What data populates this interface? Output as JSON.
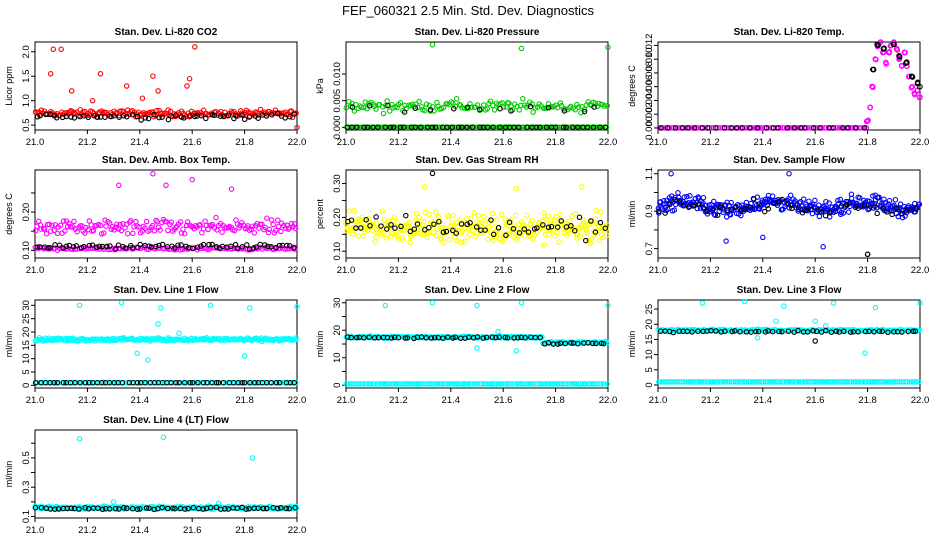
{
  "main_title": "FEF_060321  2.5 Min. Std. Dev. Diagnostics",
  "colors": {
    "red": "#ff0000",
    "green": "#00cc00",
    "magenta": "#ff00ff",
    "yellow": "#ffff00",
    "blue": "#0000ff",
    "cyan": "#00ffff",
    "black": "#000000"
  },
  "chart_data": [
    {
      "type": "scatter",
      "title": "Stan. Dev. Li-820 CO2",
      "xlabel": "",
      "ylabel": "Licor ppm",
      "xlim": [
        21.0,
        22.0
      ],
      "ylim": [
        0.4,
        2.2
      ],
      "xticks": [
        "21.0",
        "21.2",
        "21.4",
        "21.6",
        "21.8",
        "22.0"
      ],
      "yticks": [
        0.5,
        1.0,
        1.5,
        2.0
      ],
      "ytick_labels": [
        "0.5",
        "1.0",
        "1.5",
        "2.0"
      ],
      "series": [
        {
          "name": "all",
          "color": "red",
          "pattern": "band",
          "base": 0.74,
          "spread": 0.1,
          "count": 170,
          "outliers": [
            [
              21.07,
              2.05
            ],
            [
              21.1,
              2.05
            ],
            [
              21.06,
              1.55
            ],
            [
              21.14,
              1.2
            ],
            [
              21.25,
              1.55
            ],
            [
              21.35,
              1.3
            ],
            [
              21.45,
              1.5
            ],
            [
              21.47,
              1.2
            ],
            [
              21.58,
              1.3
            ],
            [
              21.59,
              1.45
            ],
            [
              21.61,
              2.1
            ],
            [
              21.22,
              1.0
            ],
            [
              21.41,
              1.05
            ],
            [
              22.0,
              0.45
            ]
          ]
        },
        {
          "name": "sampled",
          "color": "black",
          "pattern": "band",
          "base": 0.68,
          "spread": 0.09,
          "count": 60,
          "outliers": []
        }
      ]
    },
    {
      "type": "scatter",
      "title": "Stan. Dev. Li-820 Pressure",
      "xlabel": "",
      "ylabel": "kPa",
      "xlim": [
        21.0,
        22.0
      ],
      "ylim": [
        -0.0005,
        0.016
      ],
      "xticks": [
        "21.0",
        "21.2",
        "21.4",
        "21.6",
        "21.8",
        "22.0"
      ],
      "yticks": [
        0.0,
        0.005,
        0.01
      ],
      "ytick_labels": [
        "0.000",
        "0.005",
        "0.010"
      ],
      "series": [
        {
          "name": "zero",
          "color": "green",
          "pattern": "flat",
          "base": 0.0,
          "spread": 0.0,
          "count": 150,
          "outliers": []
        },
        {
          "name": "all",
          "color": "green",
          "pattern": "band",
          "base": 0.004,
          "spread": 0.0017,
          "count": 140,
          "outliers": [
            [
              21.33,
              0.0155
            ],
            [
              21.67,
              0.0148
            ],
            [
              22.0,
              0.015
            ]
          ]
        },
        {
          "name": "sampled",
          "color": "black",
          "pattern": "flat",
          "base": 0.0,
          "spread": 0.0,
          "count": 50,
          "outliers": []
        },
        {
          "name": "sampled-high",
          "color": "black",
          "pattern": "band",
          "base": 0.0035,
          "spread": 0.0015,
          "count": 16,
          "outliers": []
        }
      ]
    },
    {
      "type": "scatter",
      "title": "Stan. Dev. Li-820 Temp.",
      "xlabel": "",
      "ylabel": "degrees C",
      "xlim": [
        21.0,
        22.0
      ],
      "ylim": [
        -0.0003,
        0.0125
      ],
      "xticks": [
        "21.0",
        "21.2",
        "21.4",
        "21.6",
        "21.8",
        "22.0"
      ],
      "yticks": [
        0.0,
        0.002,
        0.004,
        0.006,
        0.008,
        0.01,
        0.012
      ],
      "ytick_labels": [
        "0.000",
        "0.002",
        "0.004",
        "0.006",
        "0.008",
        "0.010",
        "0.012"
      ],
      "series": [
        {
          "name": "zero",
          "color": "magenta",
          "pattern": "flat",
          "base": 0.0,
          "spread": 0.0,
          "x_range": [
            21.0,
            21.8
          ],
          "count": 95,
          "outliers": []
        },
        {
          "name": "zero-sampled",
          "color": "black",
          "pattern": "flat",
          "base": 0.0,
          "spread": 0.0,
          "x_range": [
            21.0,
            21.8
          ],
          "count": 30,
          "outliers": []
        },
        {
          "name": "spike",
          "color": "magenta",
          "pattern": "curve",
          "points": [
            [
              21.8,
              0.001
            ],
            [
              21.81,
              0.003
            ],
            [
              21.82,
              0.006
            ],
            [
              21.83,
              0.01
            ],
            [
              21.84,
              0.012
            ],
            [
              21.85,
              0.0125
            ],
            [
              21.86,
              0.011
            ],
            [
              21.87,
              0.0095
            ],
            [
              21.88,
              0.011
            ],
            [
              21.89,
              0.012
            ],
            [
              21.9,
              0.0125
            ],
            [
              21.91,
              0.0115
            ],
            [
              21.92,
              0.01
            ],
            [
              21.93,
              0.009
            ],
            [
              21.94,
              0.011
            ],
            [
              21.95,
              0.009
            ],
            [
              21.96,
              0.0075
            ],
            [
              21.97,
              0.006
            ],
            [
              21.98,
              0.005
            ],
            [
              21.99,
              0.0055
            ],
            [
              22.0,
              0.0045
            ]
          ]
        },
        {
          "name": "spike-sampled",
          "color": "black",
          "pattern": "curve",
          "points": [
            [
              21.82,
              0.0085
            ],
            [
              21.84,
              0.012
            ],
            [
              21.86,
              0.0115
            ],
            [
              21.9,
              0.0122
            ],
            [
              21.92,
              0.0105
            ],
            [
              21.95,
              0.0095
            ],
            [
              21.97,
              0.0075
            ],
            [
              21.99,
              0.0065
            ],
            [
              22.0,
              0.006
            ]
          ]
        }
      ]
    },
    {
      "type": "scatter",
      "title": "Stan. Dev. Amb. Box Temp.",
      "xlabel": "",
      "ylabel": "degrees C",
      "xlim": [
        21.0,
        22.0
      ],
      "ylim": [
        0.08,
        0.31
      ],
      "xticks": [
        "21.0",
        "21.2",
        "21.4",
        "21.6",
        "21.8",
        "22.0"
      ],
      "yticks": [
        0.1,
        0.15,
        0.2,
        0.25
      ],
      "ytick_labels": [
        "0.10",
        "",
        "0.20",
        ""
      ],
      "series": [
        {
          "name": "upper",
          "color": "magenta",
          "pattern": "band",
          "base": 0.16,
          "spread": 0.03,
          "count": 170,
          "outliers": [
            [
              21.45,
              0.3
            ],
            [
              21.6,
              0.285
            ],
            [
              21.32,
              0.27
            ],
            [
              21.5,
              0.27
            ],
            [
              21.75,
              0.26
            ]
          ]
        },
        {
          "name": "lower",
          "color": "magenta",
          "pattern": "band",
          "base": 0.105,
          "spread": 0.006,
          "count": 120,
          "outliers": []
        },
        {
          "name": "sampled",
          "color": "black",
          "pattern": "band",
          "base": 0.11,
          "spread": 0.008,
          "count": 70,
          "outliers": []
        }
      ]
    },
    {
      "type": "scatter",
      "title": "Stan. Dev. Gas Stream RH",
      "xlabel": "",
      "ylabel": "percent",
      "xlim": [
        21.0,
        22.0
      ],
      "ylim": [
        0.08,
        0.34
      ],
      "xticks": [
        "21.0",
        "21.2",
        "21.4",
        "21.6",
        "21.8",
        "22.0"
      ],
      "yticks": [
        0.1,
        0.15,
        0.2,
        0.25,
        0.3
      ],
      "ytick_labels": [
        "0.10",
        "",
        "0.20",
        "",
        "0.30"
      ],
      "series": [
        {
          "name": "all",
          "color": "yellow",
          "pattern": "band",
          "base": 0.17,
          "spread": 0.06,
          "count": 320,
          "outliers": [
            [
              21.65,
              0.285
            ],
            [
              21.9,
              0.29
            ],
            [
              21.3,
              0.29
            ]
          ]
        },
        {
          "name": "sampled",
          "color": "black",
          "pattern": "band",
          "base": 0.17,
          "spread": 0.05,
          "count": 55,
          "outliers": [
            [
              21.33,
              0.33
            ]
          ]
        }
      ]
    },
    {
      "type": "scatter",
      "title": "Stan. Dev. Sample Flow",
      "xlabel": "",
      "ylabel": "ml/min",
      "xlim": [
        21.0,
        22.0
      ],
      "ylim": [
        0.65,
        1.12
      ],
      "xticks": [
        "21.0",
        "21.2",
        "21.4",
        "21.6",
        "21.8",
        "22.0"
      ],
      "yticks": [
        0.7,
        0.8,
        0.9,
        1.0,
        1.1
      ],
      "ytick_labels": [
        "0.7",
        "",
        "0.9",
        "",
        "1.1"
      ],
      "series": [
        {
          "name": "all",
          "color": "blue",
          "pattern": "wave",
          "base": 0.93,
          "spread": 0.06,
          "count": 330,
          "outliers": [
            [
              21.05,
              1.1
            ],
            [
              21.5,
              1.1
            ],
            [
              21.26,
              0.74
            ],
            [
              21.4,
              0.76
            ],
            [
              21.63,
              0.71
            ],
            [
              21.8,
              0.67
            ]
          ]
        },
        {
          "name": "sampled",
          "color": "black",
          "pattern": "wave",
          "base": 0.92,
          "spread": 0.05,
          "count": 55,
          "outliers": [
            [
              21.8,
              0.67
            ]
          ]
        }
      ]
    },
    {
      "type": "scatter",
      "title": "Stan. Dev. Line 1 Flow",
      "xlabel": "",
      "ylabel": "ml/min",
      "xlim": [
        21.0,
        22.0
      ],
      "ylim": [
        -1,
        32
      ],
      "xticks": [
        "21.0",
        "21.2",
        "21.4",
        "21.6",
        "21.8",
        "22.0"
      ],
      "yticks": [
        0,
        5,
        10,
        15,
        20,
        25,
        30
      ],
      "ytick_labels": [
        "0",
        "5",
        "10",
        "15",
        "20",
        "25",
        "30"
      ],
      "series": [
        {
          "name": "all",
          "color": "cyan",
          "pattern": "band",
          "base": 17.2,
          "spread": 0.8,
          "count": 260,
          "outliers": [
            [
              21.17,
              30
            ],
            [
              21.33,
              31
            ],
            [
              21.48,
              29
            ],
            [
              21.67,
              30
            ],
            [
              21.82,
              29
            ],
            [
              22.0,
              29.5
            ],
            [
              21.47,
              23
            ],
            [
              21.39,
              12
            ],
            [
              21.43,
              9.5
            ],
            [
              21.8,
              11
            ],
            [
              21.55,
              19.5
            ]
          ]
        },
        {
          "name": "zero",
          "color": "cyan",
          "pattern": "flat",
          "base": 1.0,
          "spread": 0.0,
          "count": 120,
          "outliers": []
        },
        {
          "name": "sampled",
          "color": "black",
          "pattern": "flat",
          "base": 1.0,
          "spread": 0.0,
          "count": 60,
          "outliers": []
        }
      ]
    },
    {
      "type": "scatter",
      "title": "Stan. Dev. Line 2 Flow",
      "xlabel": "",
      "ylabel": "ml/min",
      "xlim": [
        21.0,
        22.0
      ],
      "ylim": [
        -1,
        31
      ],
      "xticks": [
        "21.0",
        "21.2",
        "21.4",
        "21.6",
        "21.8",
        "22.0"
      ],
      "yticks": [
        0,
        5,
        10,
        15,
        20,
        25,
        30
      ],
      "ytick_labels": [
        "0",
        "",
        "10",
        "",
        "20",
        "",
        "30"
      ],
      "series": [
        {
          "name": "all",
          "color": "cyan",
          "pattern": "step",
          "base": 17.5,
          "base2": 15.5,
          "step_at": 21.75,
          "spread": 0.5,
          "count": 240,
          "outliers": [
            [
              21.15,
              29
            ],
            [
              21.33,
              30
            ],
            [
              21.5,
              29
            ],
            [
              21.67,
              30
            ],
            [
              22.0,
              29
            ],
            [
              21.5,
              13.5
            ],
            [
              21.65,
              12.5
            ],
            [
              21.58,
              19.5
            ]
          ]
        },
        {
          "name": "zero",
          "color": "cyan",
          "pattern": "flat",
          "base": 0.5,
          "spread": 0.0,
          "count": 140,
          "outliers": []
        },
        {
          "name": "sampled",
          "color": "black",
          "pattern": "step",
          "base": 17.3,
          "base2": 15.3,
          "step_at": 21.75,
          "spread": 0.4,
          "count": 60,
          "outliers": []
        }
      ]
    },
    {
      "type": "scatter",
      "title": "Stan. Dev. Line 3 Flow",
      "xlabel": "",
      "ylabel": "ml/min",
      "xlim": [
        21.0,
        22.0
      ],
      "ylim": [
        -1,
        28
      ],
      "xticks": [
        "21.0",
        "21.2",
        "21.4",
        "21.6",
        "21.8",
        "22.0"
      ],
      "yticks": [
        0,
        5,
        10,
        15,
        20,
        25
      ],
      "ytick_labels": [
        "0",
        "5",
        "10",
        "15",
        "20",
        "25"
      ],
      "series": [
        {
          "name": "all",
          "color": "cyan",
          "pattern": "band",
          "base": 18.0,
          "spread": 0.5,
          "count": 240,
          "outliers": [
            [
              21.17,
              27
            ],
            [
              21.33,
              27.5
            ],
            [
              21.48,
              26
            ],
            [
              21.67,
              27
            ],
            [
              21.83,
              25.5
            ],
            [
              22.0,
              27
            ],
            [
              21.6,
              21
            ],
            [
              21.64,
              19.5
            ],
            [
              21.79,
              10.5
            ],
            [
              21.38,
              15.5
            ],
            [
              21.45,
              21
            ]
          ]
        },
        {
          "name": "zero",
          "color": "cyan",
          "pattern": "flat",
          "base": 1.0,
          "spread": 0.0,
          "count": 140,
          "outliers": []
        },
        {
          "name": "sampled",
          "color": "black",
          "pattern": "band",
          "base": 17.6,
          "spread": 0.4,
          "count": 55,
          "outliers": [
            [
              21.6,
              14.5
            ]
          ]
        }
      ]
    },
    {
      "type": "scatter",
      "title": "Stan. Dev. Line 4 (LT) Flow",
      "xlabel": "",
      "ylabel": "ml/min",
      "xlim": [
        21.0,
        22.0
      ],
      "ylim": [
        0.09,
        0.69
      ],
      "xticks": [
        "21.0",
        "21.2",
        "21.4",
        "21.6",
        "21.8",
        "22.0"
      ],
      "yticks": [
        0.1,
        0.2,
        0.3,
        0.4,
        0.5,
        0.6
      ],
      "ytick_labels": [
        "0.1",
        "",
        "0.3",
        "",
        "0.5",
        ""
      ],
      "series": [
        {
          "name": "all",
          "color": "cyan",
          "pattern": "band",
          "base": 0.16,
          "spread": 0.015,
          "count": 280,
          "outliers": [
            [
              21.17,
              0.63
            ],
            [
              21.49,
              0.64
            ],
            [
              21.83,
              0.5
            ],
            [
              21.3,
              0.2
            ],
            [
              21.7,
              0.19
            ]
          ]
        },
        {
          "name": "sampled",
          "color": "black",
          "pattern": "band",
          "base": 0.155,
          "spread": 0.012,
          "count": 60,
          "outliers": []
        }
      ]
    }
  ]
}
